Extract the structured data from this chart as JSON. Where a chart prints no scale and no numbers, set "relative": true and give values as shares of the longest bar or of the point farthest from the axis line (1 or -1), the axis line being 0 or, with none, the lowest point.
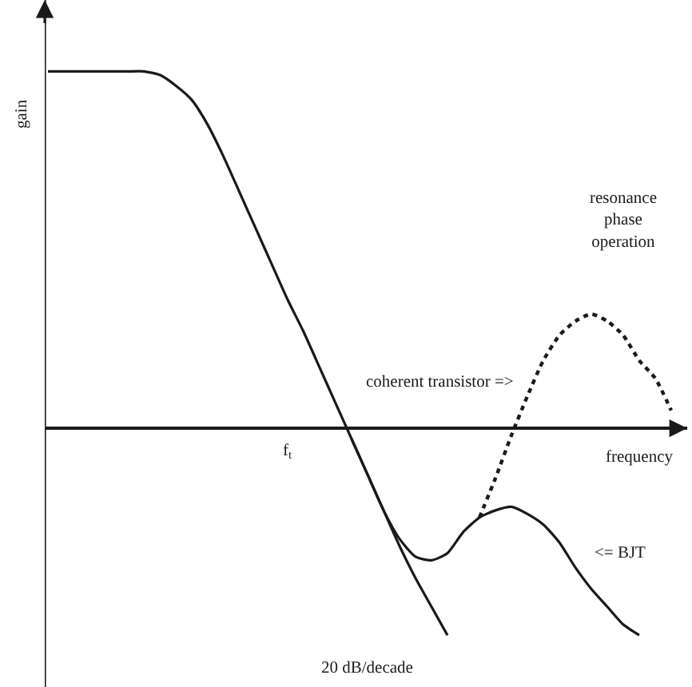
{
  "chart_data": {
    "type": "line",
    "relative": true,
    "xlabel": "frequency",
    "ylabel": "gain",
    "legend": false,
    "grid": false,
    "marker": "none",
    "categories": [
      null,
      null,
      null,
      null,
      null,
      null,
      null,
      null,
      null,
      null,
      null,
      null,
      null,
      null,
      null,
      null,
      null,
      null,
      null,
      null,
      null,
      null,
      null,
      null,
      null,
      null,
      null,
      null,
      null,
      null,
      null,
      null,
      null,
      null,
      null,
      null,
      null,
      null,
      null,
      null,
      null
    ],
    "series": [
      {
        "name": "<= BJT",
        "color": "#1a1a1a",
        "line_style": "solid",
        "values": [
          1.0,
          1.0,
          1.0,
          1.0,
          1.0,
          1.0,
          1.0,
          0.99,
          0.96,
          0.92,
          0.85,
          0.76,
          0.66,
          0.56,
          0.46,
          0.36,
          0.27,
          0.17,
          0.07,
          -0.03,
          -0.13,
          -0.23,
          -0.31,
          -0.36,
          -0.37,
          -0.35,
          -0.29,
          -0.25,
          -0.23,
          -0.22,
          -0.24,
          -0.27,
          -0.32,
          -0.39,
          -0.45,
          -0.5,
          -0.55,
          -0.58,
          null,
          null,
          null
        ]
      },
      {
        "name": "20 dB/decade",
        "color": "#1a1a1a",
        "line_style": "solid",
        "values": [
          null,
          null,
          null,
          null,
          null,
          null,
          null,
          null,
          null,
          null,
          null,
          null,
          null,
          null,
          null,
          null,
          null,
          null,
          null,
          -0.03,
          -0.13,
          -0.23,
          -0.33,
          -0.42,
          -0.5,
          -0.58,
          null,
          null,
          null,
          null,
          null,
          null,
          null,
          null,
          null,
          null,
          null,
          null,
          null,
          null,
          null
        ]
      },
      {
        "name": "coherent transistor =>",
        "color": "#1a1a1a",
        "line_style": "dotted",
        "values": [
          null,
          null,
          null,
          null,
          null,
          null,
          null,
          null,
          null,
          null,
          null,
          null,
          null,
          null,
          null,
          null,
          null,
          null,
          null,
          null,
          null,
          null,
          null,
          null,
          null,
          null,
          null,
          -0.25,
          -0.14,
          -0.02,
          0.09,
          0.19,
          0.26,
          0.3,
          0.32,
          0.3,
          0.26,
          0.19,
          0.14,
          0.05,
          null
        ]
      }
    ],
    "annotations": [
      "resonance phase operation",
      "f$_{t}$"
    ]
  }
}
